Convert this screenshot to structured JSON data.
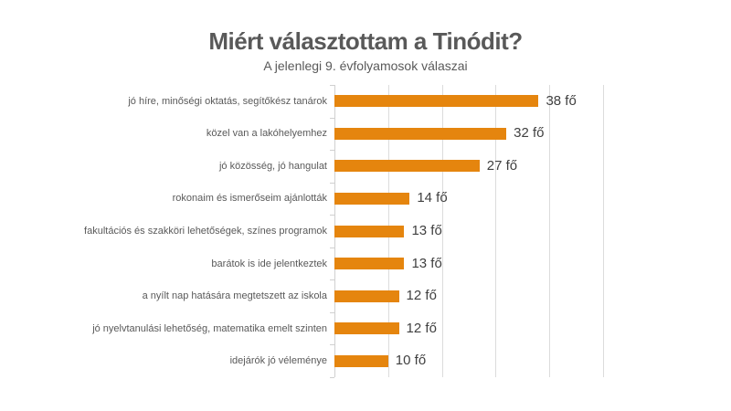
{
  "chart_data": {
    "type": "bar",
    "orientation": "horizontal",
    "title": "Miért választottam a Tinódit?",
    "subtitle": "A jelenlegi 9. évfolyamosok válaszai",
    "categories": [
      "jó híre, minőségi oktatás, segítőkész tanárok",
      "közel van a lakóhelyemhez",
      "jó közösség, jó hangulat",
      "rokonaim és ismerőseim ajánlották",
      "fakultációs és szakköri lehetőségek, színes programok",
      "barátok is ide jelentkeztek",
      "a nyílt nap hatására megtetszett az iskola",
      "jó nyelvtanulási lehetőség, matematika emelt szinten",
      "idejárók jó véleménye"
    ],
    "values": [
      38,
      32,
      27,
      14,
      13,
      13,
      12,
      12,
      10
    ],
    "value_suffix": " fő",
    "value_labels": [
      "38 fő",
      "32 fő",
      "27 fő",
      "14 fő",
      "13 fő",
      "13 fő",
      "12 fő",
      "12 fő",
      "10 fő"
    ],
    "xlabel": "",
    "ylabel": "",
    "xlim": [
      0,
      50
    ],
    "grid_step": 10,
    "grid": true,
    "legend": false,
    "bar_color": "#e5850e",
    "gridline_color": "#dcdcdc",
    "title_color": "#595959",
    "label_color": "#595959",
    "value_label_color": "#404040"
  }
}
